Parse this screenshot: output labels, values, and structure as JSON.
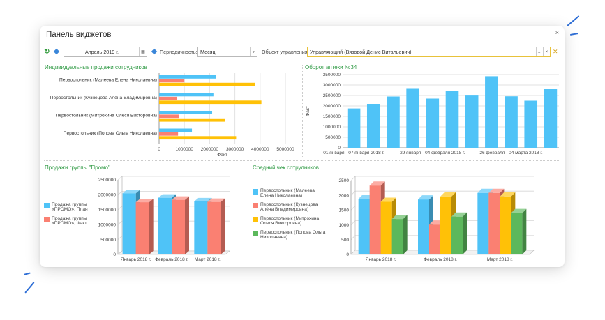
{
  "window": {
    "title": "Панель виджетов",
    "close_glyph": "×"
  },
  "toolbar": {
    "refresh_glyph": "↻",
    "date_value": "Апрель 2019 г.",
    "calendar_glyph": "▦",
    "period_label": "Периодичность:",
    "period_value": "Месяц",
    "select_arrow": "▾",
    "object_label": "Объект управления:",
    "object_value": "Управляющий (Вязовой Денис Витальевич)",
    "object_dots": "...",
    "object_clear": "×",
    "settings_glyph": "✕"
  },
  "colors": {
    "blue": "#4fc3f7",
    "red": "#fa8072",
    "yellow": "#ffc107",
    "green": "#5cb85c",
    "title_green": "#2f9a44"
  },
  "widgets": {
    "individual_sales": {
      "title": "Индивидуальные продажи сотрудников",
      "chart_data": {
        "type": "bar",
        "orientation": "horizontal",
        "categories": [
          "Первостольник (Малеева Елена Николаевна)",
          "Первостольник (Кузнецова Алёна Владимировна)",
          "Первостольник (Митрохина Олеся Викторовна)",
          "Первостольник (Попова Ольга Николаевна)"
        ],
        "series": [
          {
            "color": "#4fc3f7",
            "values": [
              2250000,
              2150000,
              2100000,
              1300000
            ]
          },
          {
            "color": "#fa8072",
            "values": [
              1000000,
              700000,
              800000,
              750000
            ]
          },
          {
            "color": "#ffc107",
            "values": [
              3800000,
              4050000,
              2600000,
              3050000
            ]
          }
        ],
        "xlabel": "Факт",
        "xticks": [
          "0",
          "1000000",
          "2000000",
          "3000000",
          "4000000",
          "5000000"
        ],
        "xlim": [
          0,
          5000000
        ]
      }
    },
    "pharmacy_turnover": {
      "title": "Оборот аптеки №34",
      "chart_data": {
        "type": "bar",
        "values": [
          1880000,
          2100000,
          2450000,
          2850000,
          2350000,
          2720000,
          2530000,
          3420000,
          2460000,
          2250000,
          2830000
        ],
        "ylabel": "Факт",
        "yticks": [
          "0",
          "500000",
          "1000000",
          "1500000",
          "2000000",
          "2500000",
          "3000000",
          "3500000"
        ],
        "ylim": [
          0,
          3500000
        ],
        "xticklabels": [
          "01 января - 07 января 2018 г.",
          "29 января - 04 февраля 2018 г.",
          "26 февраля - 04 марта 2018 г."
        ],
        "color": "#4fc3f7"
      }
    },
    "promo_sales": {
      "title": "Продажи группы \"Промо\"",
      "chart_data": {
        "type": "bar",
        "categories": [
          "Январь 2018 г.",
          "Февраль 2018 г.",
          "Март 2018 г."
        ],
        "series": [
          {
            "name": "Продажа группы «ПРОМО», План",
            "color": "#4fc3f7",
            "values": [
              2050000,
              1900000,
              1780000
            ]
          },
          {
            "name": "Продажа группы «ПРОМО», Факт",
            "color": "#fa8072",
            "values": [
              1750000,
              1830000,
              1760000
            ]
          }
        ],
        "yticks": [
          "0",
          "500000",
          "1000000",
          "1500000",
          "2000000",
          "2500000"
        ],
        "ylim": [
          0,
          2500000
        ]
      }
    },
    "average_check": {
      "title": "Средний чек сотрудников",
      "chart_data": {
        "type": "bar",
        "categories": [
          "Январь 2018 г.",
          "Февраль 2018 г.",
          "Март 2018 г."
        ],
        "series": [
          {
            "name": "Первостольник (Малеева Елена Николаевна)",
            "color": "#4fc3f7",
            "values": [
              1880,
              1860,
              2080
            ]
          },
          {
            "name": "Первостольник (Кузнецова Алёна Владимировна)",
            "color": "#fa8072",
            "values": [
              2330,
              1010,
              2080
            ]
          },
          {
            "name": "Первостольник (Митрохина Олеся Викторовна)",
            "color": "#ffc107",
            "values": [
              1780,
              1960,
              1960
            ]
          },
          {
            "name": "Первостольник (Попова Ольга Николаевна)",
            "color": "#5cb85c",
            "values": [
              1200,
              1280,
              1400
            ]
          }
        ],
        "yticks": [
          "0",
          "500",
          "1000",
          "1500",
          "2000",
          "2500"
        ],
        "ylim": [
          0,
          2500
        ]
      }
    }
  }
}
